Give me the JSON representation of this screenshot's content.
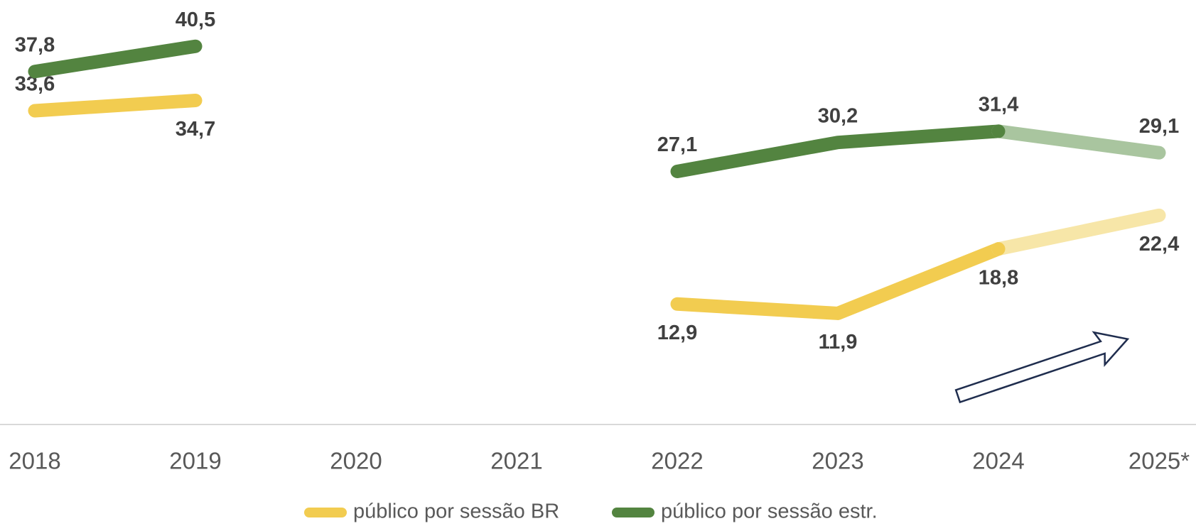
{
  "chart_data": {
    "type": "line",
    "categories": [
      "2018",
      "2019",
      "2020",
      "2021",
      "2022",
      "2023",
      "2024",
      "2025*"
    ],
    "series": [
      {
        "name": "público por sessão BR",
        "color": "#f2cc50",
        "projection_color": "#f7e6a8",
        "values": [
          33.6,
          34.7,
          null,
          null,
          12.9,
          11.9,
          18.8,
          22.4
        ],
        "value_labels": [
          "33,6",
          "34,7",
          null,
          null,
          "12,9",
          "11,9",
          "18,8",
          "22,4"
        ]
      },
      {
        "name": "público por sessão estr.",
        "color": "#538440",
        "projection_color": "#a9c59f",
        "values": [
          37.8,
          40.5,
          null,
          null,
          27.1,
          30.2,
          31.4,
          29.1
        ],
        "value_labels": [
          "37,8",
          "40,5",
          null,
          null,
          "27,1",
          "30,2",
          "31,4",
          "29,1"
        ]
      }
    ],
    "ylim": [
      0,
      45
    ]
  }
}
